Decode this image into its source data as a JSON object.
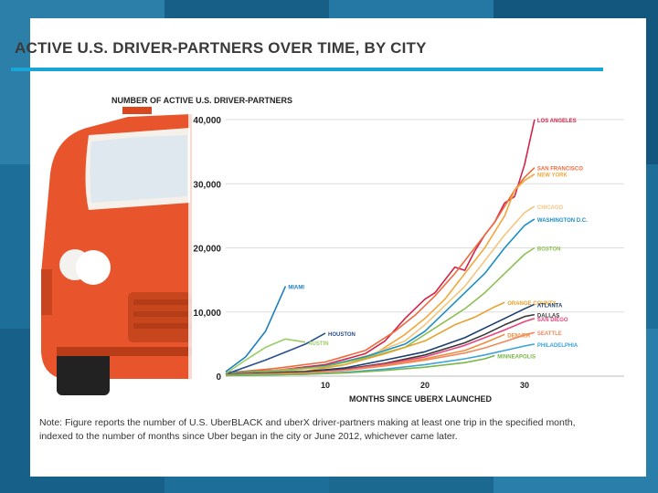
{
  "title": "ACTIVE U.S. DRIVER-PARTNERS OVER TIME, BY CITY",
  "note": "Note: Figure reports the number of U.S. UberBLACK and uberX driver-partners making at least one trip in the specified month, indexed to the number of months since Uber began in the city or June 2012, whichever came later.",
  "chart_data": {
    "type": "line",
    "ylabel": "NUMBER OF ACTIVE U.S. DRIVER-PARTNERS",
    "xlabel": "MONTHS SINCE UBERX LAUNCHED",
    "xlim": [
      0,
      40
    ],
    "ylim": [
      0,
      40000
    ],
    "xticks": [
      "10",
      "20",
      "30"
    ],
    "xtick_values": [
      10,
      20,
      30
    ],
    "yticks": [
      "0",
      "10,000",
      "20,000",
      "30,000",
      "40,000"
    ],
    "ytick_values": [
      0,
      10000,
      20000,
      30000,
      40000
    ],
    "grid": true,
    "series": [
      {
        "name": "LOS ANGELES",
        "color": "#d4234a",
        "x": [
          0,
          5,
          10,
          14,
          16,
          18,
          19,
          20,
          21,
          22,
          23,
          24,
          25,
          26,
          27,
          28,
          29,
          30,
          31
        ],
        "y": [
          600,
          900,
          1800,
          3500,
          5500,
          9000,
          10500,
          12000,
          13000,
          15000,
          17000,
          16500,
          19500,
          22000,
          24000,
          27000,
          28000,
          33000,
          40000
        ]
      },
      {
        "name": "SAN FRANCISCO",
        "color": "#ee6a3c",
        "x": [
          0,
          5,
          10,
          14,
          17,
          19,
          21,
          23,
          25,
          27,
          29,
          30,
          31
        ],
        "y": [
          500,
          1200,
          2200,
          4000,
          7000,
          9500,
          12500,
          16000,
          20000,
          24000,
          29000,
          31000,
          32500
        ]
      },
      {
        "name": "NEW YORK",
        "color": "#f2a73b",
        "x": [
          0,
          5,
          10,
          15,
          18,
          20,
          22,
          24,
          26,
          28,
          29,
          30,
          31
        ],
        "y": [
          400,
          900,
          1500,
          3500,
          6500,
          9000,
          12000,
          16000,
          20000,
          25000,
          29000,
          30500,
          31500
        ]
      },
      {
        "name": "CHICAGO",
        "color": "#f6c57c",
        "x": [
          0,
          6,
          10,
          14,
          18,
          20,
          22,
          24,
          26,
          28,
          30,
          31
        ],
        "y": [
          400,
          800,
          1500,
          3000,
          5500,
          8000,
          11000,
          14000,
          18000,
          22000,
          25500,
          26500
        ]
      },
      {
        "name": "WASHINGTON D.C.",
        "color": "#1c8ec4",
        "x": [
          0,
          6,
          10,
          14,
          18,
          20,
          22,
          24,
          26,
          28,
          30,
          31
        ],
        "y": [
          500,
          900,
          1600,
          3000,
          5000,
          7000,
          10000,
          13000,
          16000,
          20000,
          23500,
          24500
        ]
      },
      {
        "name": "BOSTON",
        "color": "#8cc152",
        "x": [
          0,
          6,
          10,
          14,
          18,
          20,
          22,
          24,
          26,
          28,
          30,
          31
        ],
        "y": [
          400,
          900,
          1500,
          2800,
          4500,
          6500,
          8500,
          10500,
          13000,
          16000,
          19000,
          20000
        ]
      },
      {
        "name": "MIAMI",
        "color": "#1d7fc0",
        "x": [
          0,
          2,
          4,
          6
        ],
        "y": [
          700,
          3000,
          7000,
          14000
        ]
      },
      {
        "name": "HOUSTON",
        "color": "#2a4f8f",
        "x": [
          0,
          4,
          8,
          10
        ],
        "y": [
          300,
          2500,
          5000,
          6700
        ]
      },
      {
        "name": "AUSTIN",
        "color": "#9acd65",
        "x": [
          0,
          2,
          4,
          6,
          8
        ],
        "y": [
          400,
          2500,
          4500,
          5800,
          5300
        ]
      },
      {
        "name": "ORANGE COUNTY",
        "color": "#e5a12c",
        "x": [
          0,
          8,
          12,
          16,
          20,
          23,
          25,
          27,
          28
        ],
        "y": [
          300,
          800,
          1800,
          3500,
          5500,
          8000,
          9200,
          10800,
          11500
        ]
      },
      {
        "name": "ATLANTA",
        "color": "#1b3f73",
        "x": [
          0,
          8,
          12,
          16,
          20,
          24,
          26,
          28,
          30,
          31
        ],
        "y": [
          300,
          700,
          1300,
          2500,
          3800,
          6000,
          7500,
          9000,
          10500,
          11200
        ]
      },
      {
        "name": "DALLAS",
        "color": "#3a3a3a",
        "x": [
          0,
          8,
          12,
          16,
          20,
          24,
          26,
          28,
          30,
          31
        ],
        "y": [
          200,
          600,
          1100,
          2000,
          3300,
          5200,
          6500,
          8000,
          9300,
          9600
        ]
      },
      {
        "name": "SAN DIEGO",
        "color": "#e8457c",
        "x": [
          0,
          8,
          12,
          16,
          20,
          24,
          26,
          28,
          30,
          31
        ],
        "y": [
          200,
          500,
          1000,
          1900,
          3000,
          4800,
          6000,
          7200,
          8500,
          9000
        ]
      },
      {
        "name": "DENVER",
        "color": "#f28a3c",
        "x": [
          0,
          8,
          12,
          16,
          20,
          24,
          26,
          28
        ],
        "y": [
          200,
          500,
          900,
          1700,
          2700,
          4000,
          5200,
          6500
        ]
      },
      {
        "name": "SEATTLE",
        "color": "#f08a5c",
        "x": [
          0,
          8,
          12,
          16,
          20,
          24,
          26,
          28,
          30,
          31
        ],
        "y": [
          200,
          500,
          900,
          1600,
          2500,
          3600,
          4400,
          5400,
          6400,
          6800
        ]
      },
      {
        "name": "PHILADELPHIA",
        "color": "#3aa3d8",
        "x": [
          0,
          8,
          12,
          16,
          20,
          24,
          26,
          28,
          30,
          31
        ],
        "y": [
          100,
          300,
          600,
          1100,
          1800,
          2700,
          3300,
          4000,
          4700,
          5000
        ]
      },
      {
        "name": "MINNEAPOLIS",
        "color": "#7ab648",
        "x": [
          0,
          8,
          12,
          16,
          20,
          24,
          26,
          27
        ],
        "y": [
          100,
          300,
          500,
          900,
          1400,
          2100,
          2700,
          3200
        ]
      }
    ]
  }
}
